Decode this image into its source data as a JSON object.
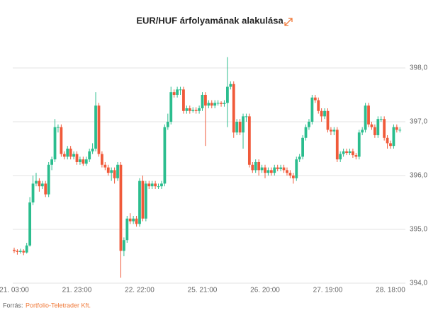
{
  "chart_data": {
    "type": "candlestick",
    "title": "EUR/HUF árfolyamának alakulása",
    "source_label": "Forrás:",
    "source": "Portfolio-Teletrader Kft.",
    "up_color": "#2bbd8e",
    "down_color": "#f05a3a",
    "grid": true,
    "ylim": [
      394,
      398.21
    ],
    "yticks": [
      {
        "value": 394,
        "label": "394,0"
      },
      {
        "value": 395,
        "label": "395,0"
      },
      {
        "value": 396,
        "label": "396,0"
      },
      {
        "value": 397,
        "label": "397,0"
      },
      {
        "value": 398,
        "label": "398,0"
      }
    ],
    "categories": [
      "21. 03:00",
      null,
      null,
      null,
      null,
      null,
      null,
      null,
      null,
      null,
      null,
      null,
      null,
      null,
      null,
      null,
      null,
      null,
      null,
      null,
      "21. 23:00",
      null,
      null,
      null,
      null,
      null,
      null,
      null,
      null,
      null,
      null,
      null,
      null,
      null,
      null,
      null,
      null,
      null,
      null,
      null,
      "22. 22:00",
      null,
      null,
      null,
      null,
      null,
      null,
      null,
      null,
      null,
      null,
      null,
      null,
      null,
      null,
      null,
      null,
      null,
      null,
      null,
      "25. 21:00",
      null,
      null,
      null,
      null,
      null,
      null,
      null,
      null,
      null,
      null,
      null,
      null,
      null,
      null,
      null,
      null,
      null,
      null,
      null,
      "26. 20:00",
      null,
      null,
      null,
      null,
      null,
      null,
      null,
      null,
      null,
      null,
      null,
      null,
      null,
      null,
      null,
      null,
      null,
      null,
      null,
      "27. 19:00",
      null,
      null,
      null,
      null,
      null,
      null,
      null,
      null,
      null,
      null,
      null,
      null,
      null,
      null,
      null,
      null,
      null,
      null,
      null,
      "28. 18:00",
      null,
      null,
      null
    ],
    "open": [
      394.62,
      394.6,
      394.58,
      394.6,
      394.57,
      394.7,
      395.5,
      395.85,
      395.9,
      395.8,
      395.85,
      395.65,
      396.2,
      396.3,
      396.9,
      396.9,
      396.4,
      396.35,
      396.5,
      396.35,
      396.4,
      396.25,
      396.3,
      396.22,
      396.3,
      396.45,
      396.5,
      397.3,
      396.4,
      396.2,
      396.15,
      396.05,
      396.1,
      395.95,
      396.2,
      394.6,
      394.8,
      395.2,
      395.15,
      395.2,
      395.1,
      395.9,
      395.2,
      395.85,
      395.8,
      395.85,
      395.8,
      395.8,
      395.85,
      396.9,
      397.0,
      397.55,
      397.5,
      397.6,
      397.6,
      397.2,
      397.25,
      397.2,
      397.22,
      397.2,
      397.25,
      397.5,
      397.3,
      397.35,
      397.3,
      397.35,
      397.35,
      397.33,
      397.35,
      397.65,
      397.7,
      396.8,
      397.0,
      396.8,
      397.1,
      397.1,
      396.2,
      396.1,
      396.25,
      396.1,
      396.15,
      396.05,
      396.1,
      396.05,
      396.15,
      396.12,
      396.15,
      396.1,
      396.05,
      396.0,
      395.95,
      396.3,
      396.35,
      396.7,
      396.9,
      397.0,
      397.45,
      397.4,
      397.2,
      397.1,
      397.2,
      396.85,
      396.82,
      396.85,
      396.3,
      396.4,
      396.45,
      396.42,
      396.45,
      396.38,
      396.35,
      396.8,
      396.85,
      397.3,
      396.95,
      396.9,
      396.75,
      397.05,
      397.05,
      396.7,
      396.6,
      396.55,
      396.9,
      396.85
    ],
    "high": [
      394.66,
      394.63,
      394.64,
      394.63,
      394.75,
      395.6,
      396.0,
      396.05,
      395.95,
      395.9,
      395.9,
      396.25,
      396.35,
      397.05,
      396.95,
      396.95,
      396.45,
      396.55,
      396.55,
      396.45,
      396.45,
      396.35,
      396.35,
      396.35,
      396.5,
      396.6,
      397.55,
      397.35,
      396.45,
      396.25,
      396.2,
      396.15,
      396.15,
      396.25,
      396.25,
      394.85,
      395.25,
      395.3,
      395.25,
      395.25,
      395.95,
      396.0,
      395.9,
      395.9,
      395.9,
      395.9,
      395.85,
      395.9,
      396.95,
      397.15,
      397.65,
      397.6,
      397.65,
      397.65,
      397.65,
      397.3,
      397.3,
      397.27,
      397.27,
      397.3,
      397.55,
      397.55,
      397.4,
      397.4,
      397.4,
      397.4,
      397.38,
      397.4,
      398.2,
      397.75,
      397.75,
      397.05,
      397.05,
      397.15,
      397.15,
      397.15,
      396.25,
      396.3,
      396.3,
      396.2,
      396.2,
      396.15,
      396.15,
      396.2,
      396.2,
      396.2,
      396.2,
      396.15,
      396.1,
      396.05,
      396.35,
      396.4,
      396.75,
      396.95,
      397.05,
      397.5,
      397.5,
      397.45,
      397.25,
      397.25,
      397.25,
      396.9,
      396.9,
      396.9,
      396.45,
      396.5,
      396.5,
      396.5,
      396.5,
      396.42,
      396.85,
      396.9,
      397.35,
      397.35,
      397.0,
      396.95,
      397.1,
      397.1,
      397.1,
      396.75,
      396.65,
      396.95,
      396.95,
      396.9
    ],
    "low": [
      394.56,
      394.53,
      394.55,
      394.52,
      394.55,
      394.68,
      395.45,
      395.8,
      395.7,
      395.75,
      395.6,
      395.6,
      396.1,
      396.25,
      396.8,
      396.35,
      396.3,
      396.3,
      396.3,
      396.3,
      396.2,
      396.2,
      396.18,
      396.18,
      396.25,
      396.4,
      396.45,
      396.35,
      396.15,
      396.1,
      396.0,
      395.9,
      395.85,
      395.9,
      394.1,
      394.5,
      394.75,
      395.1,
      395.1,
      395.05,
      395.05,
      395.15,
      395.15,
      395.75,
      395.75,
      395.75,
      395.75,
      395.75,
      395.8,
      396.85,
      396.95,
      397.45,
      397.45,
      397.5,
      397.15,
      397.15,
      397.15,
      397.17,
      397.15,
      397.15,
      397.2,
      396.55,
      397.25,
      397.25,
      397.25,
      397.3,
      397.28,
      397.28,
      396.9,
      397.6,
      396.7,
      396.75,
      396.75,
      396.5,
      397.0,
      396.15,
      396.05,
      396.05,
      396.0,
      396.05,
      395.95,
      396.0,
      396.0,
      396.0,
      396.08,
      396.08,
      396.05,
      396.0,
      395.95,
      395.85,
      395.9,
      396.25,
      396.3,
      396.65,
      396.85,
      396.95,
      397.35,
      397.15,
      397.0,
      397.05,
      396.8,
      396.75,
      396.75,
      396.25,
      396.25,
      396.35,
      396.38,
      396.38,
      396.33,
      396.3,
      396.3,
      396.75,
      396.8,
      396.9,
      396.85,
      396.7,
      396.7,
      397.0,
      396.65,
      396.5,
      396.5,
      396.5,
      396.8,
      396.8
    ],
    "close": [
      394.6,
      394.58,
      394.6,
      394.57,
      394.7,
      395.5,
      395.85,
      395.9,
      395.8,
      395.85,
      395.65,
      396.2,
      396.3,
      396.9,
      396.9,
      396.4,
      396.35,
      396.5,
      396.35,
      396.4,
      396.25,
      396.3,
      396.22,
      396.3,
      396.45,
      396.5,
      397.3,
      396.4,
      396.2,
      396.15,
      396.05,
      396.1,
      395.95,
      396.2,
      394.6,
      394.8,
      395.2,
      395.15,
      395.2,
      395.1,
      395.9,
      395.2,
      395.85,
      395.8,
      395.85,
      395.8,
      395.8,
      395.85,
      396.9,
      397.0,
      397.55,
      397.5,
      397.6,
      397.6,
      397.2,
      397.25,
      397.2,
      397.22,
      397.2,
      397.25,
      397.5,
      397.3,
      397.35,
      397.3,
      397.35,
      397.35,
      397.33,
      397.35,
      397.65,
      397.7,
      396.8,
      397.0,
      396.8,
      397.1,
      397.1,
      396.2,
      396.1,
      396.25,
      396.1,
      396.15,
      396.05,
      396.1,
      396.05,
      396.15,
      396.12,
      396.15,
      396.1,
      396.05,
      396.0,
      395.95,
      396.3,
      396.35,
      396.7,
      396.9,
      397.0,
      397.45,
      397.4,
      397.2,
      397.1,
      397.2,
      396.85,
      396.82,
      396.85,
      396.3,
      396.4,
      396.45,
      396.42,
      396.45,
      396.38,
      396.35,
      396.8,
      396.85,
      397.3,
      396.95,
      396.9,
      396.75,
      397.05,
      397.05,
      396.7,
      396.6,
      396.55,
      396.9,
      396.85,
      396.85
    ]
  }
}
